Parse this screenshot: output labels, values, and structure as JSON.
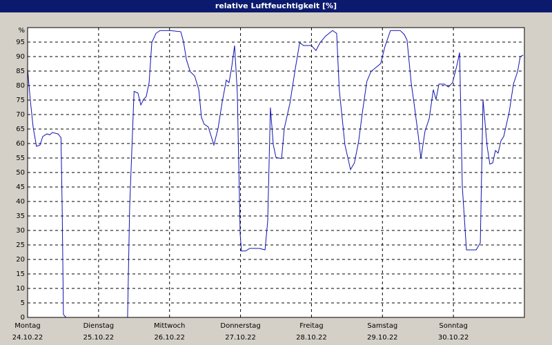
{
  "chart_data": {
    "type": "line",
    "title": "relative Luftfeuchtigkeit [%]",
    "xlim": [
      0,
      168
    ],
    "xticks": [
      {
        "value": 0,
        "label": "Montag"
      },
      {
        "value": 24,
        "label": "Dienstag"
      },
      {
        "value": 48,
        "label": "Mittwoch"
      },
      {
        "value": 72,
        "label": "Donnerstag"
      },
      {
        "value": 96,
        "label": "Freitag"
      },
      {
        "value": 120,
        "label": "Samstag"
      },
      {
        "value": 144,
        "label": "Sonntag"
      }
    ],
    "xtick_dates": [
      "24.10.22",
      "25.10.22",
      "26.10.22",
      "27.10.22",
      "28.10.22",
      "29.10.22",
      "30.10.22"
    ],
    "ylim": [
      0,
      100
    ],
    "yticks": [
      0,
      5,
      10,
      15,
      20,
      25,
      30,
      35,
      40,
      45,
      50,
      55,
      60,
      65,
      70,
      75,
      80,
      85,
      90,
      95,
      {
        "value": 100,
        "label": "%"
      }
    ],
    "grid": true,
    "series": [
      {
        "name": "relative Luftfeuchtigkeit",
        "color": "#1010b0",
        "x": [
          0,
          0.9,
          1.9,
          3,
          4.2,
          5.1,
          6.5,
          7.5,
          8.4,
          10.3,
          11.3,
          11.7,
          12.1,
          13,
          33.8,
          34.5,
          36,
          37.3,
          38.3,
          39.2,
          40.1,
          41.1,
          42,
          43.4,
          44.8,
          48,
          51.8,
          52.7,
          53.7,
          55,
          56.5,
          57.9,
          58.8,
          59.7,
          61.1,
          63,
          64.4,
          65.8,
          67.2,
          68.1,
          69,
          70,
          70.9,
          71.9,
          72.3,
          73.7,
          75.1,
          78.4,
          80.3,
          81.2,
          82.1,
          83.1,
          84,
          85.9,
          86.8,
          88.7,
          90.5,
          92,
          93.3,
          96,
          97.5,
          98.9,
          100.8,
          103.1,
          104.5,
          105.4,
          107.3,
          109.2,
          110.5,
          111.9,
          113.3,
          114.7,
          116.1,
          118,
          119.4,
          120.8,
          122.7,
          126,
          127.4,
          128.3,
          129.7,
          130.7,
          132.1,
          133,
          134.4,
          135.8,
          137.2,
          138.1,
          139.1,
          140.9,
          142.3,
          143.7,
          145.1,
          146.1,
          147,
          148.4,
          151.7,
          153.1,
          154,
          155.4,
          156.3,
          157.3,
          158.2,
          159.1,
          160.1,
          161,
          162.9,
          164.3,
          165.7,
          166.6,
          167.6
        ],
        "values": [
          85.7,
          75,
          65.5,
          59,
          59.5,
          62.4,
          63.3,
          63,
          63.8,
          63.3,
          62,
          38,
          1,
          0,
          0,
          38,
          78,
          77.4,
          73.3,
          75.2,
          76.2,
          81,
          94.8,
          98,
          99,
          99,
          98.6,
          95.2,
          89,
          84.8,
          83.3,
          78.6,
          69,
          66.7,
          65.7,
          59.5,
          65.2,
          74.3,
          81.9,
          81,
          86.2,
          93.8,
          77.6,
          28.6,
          22.9,
          22.9,
          23.8,
          23.8,
          23.3,
          33.3,
          72.4,
          59.5,
          55.2,
          54.8,
          65.2,
          73.8,
          85.7,
          94.8,
          93.8,
          93.8,
          92.1,
          94.8,
          97.1,
          99,
          98,
          78.6,
          59.5,
          51,
          53.3,
          60.5,
          71.4,
          81.4,
          84.8,
          86.4,
          87.6,
          93.3,
          99,
          99,
          97.6,
          95.7,
          81,
          73.8,
          62.9,
          54.8,
          64.3,
          68.6,
          78.6,
          75.2,
          80.5,
          80.5,
          79.5,
          81,
          86.7,
          91.4,
          45.2,
          23.3,
          23.3,
          25.7,
          75.2,
          59,
          52.9,
          53.3,
          57.6,
          56.7,
          61,
          62.4,
          71,
          80.5,
          84.8,
          90,
          90.5
        ]
      }
    ]
  }
}
